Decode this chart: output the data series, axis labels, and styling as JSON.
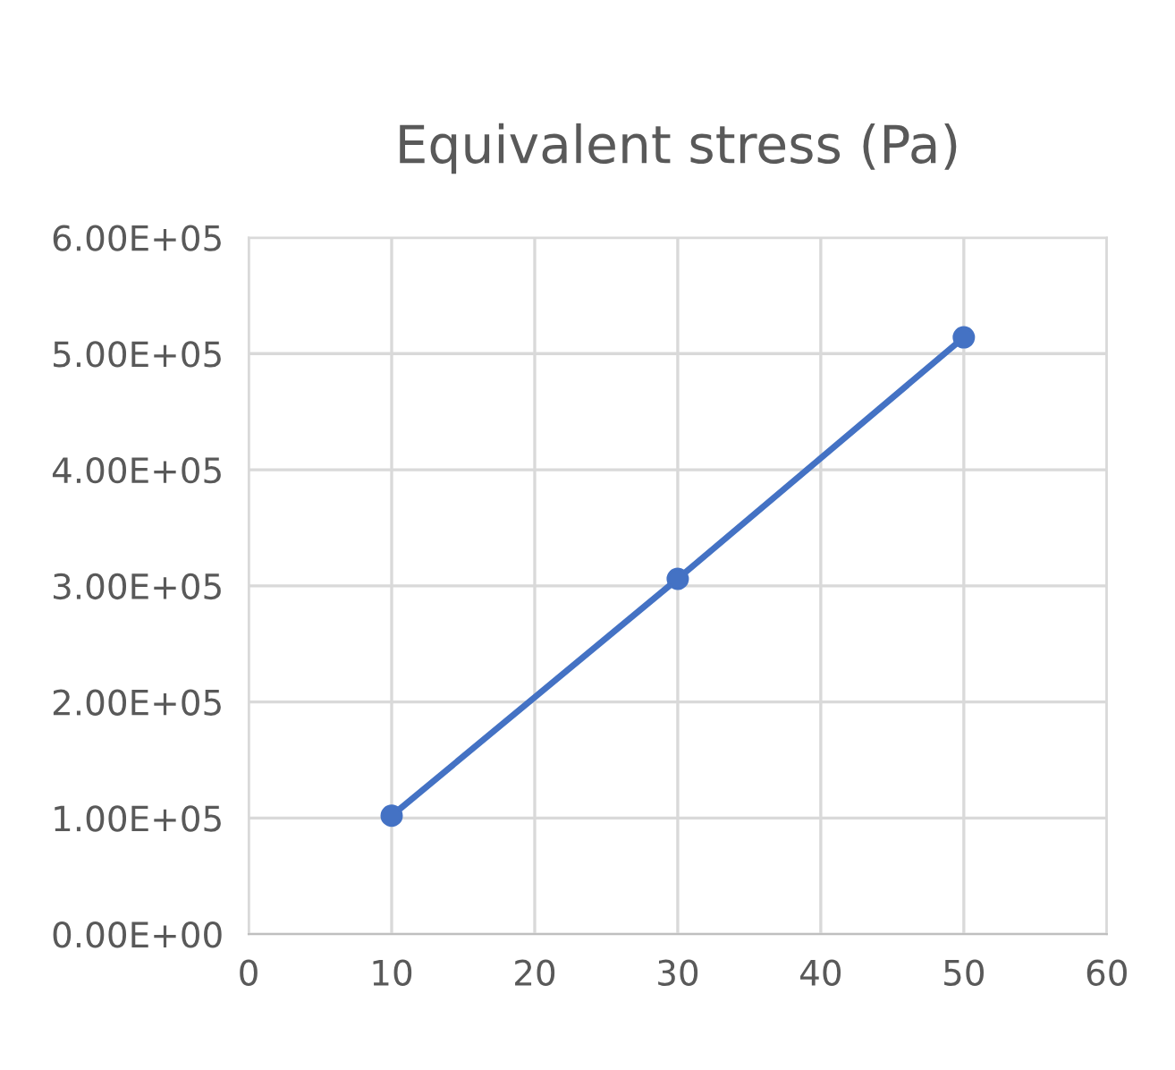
{
  "chart_data": {
    "type": "line",
    "title": "Equivalent stress (Pa)",
    "x": [
      10,
      30,
      50
    ],
    "series": [
      {
        "color": "#4472c4",
        "values": [
          102000,
          306000,
          514000
        ]
      }
    ],
    "xlim": [
      0,
      60
    ],
    "xticks": [
      0,
      10,
      20,
      30,
      40,
      50,
      60
    ],
    "ylim": [
      0,
      600000
    ],
    "yticks": [
      {
        "value": 0,
        "label": "0.00E+00"
      },
      {
        "value": 100000,
        "label": "1.00E+05"
      },
      {
        "value": 200000,
        "label": "2.00E+05"
      },
      {
        "value": 300000,
        "label": "3.00E+05"
      },
      {
        "value": 400000,
        "label": "4.00E+05"
      },
      {
        "value": 500000,
        "label": "5.00E+05"
      },
      {
        "value": 600000,
        "label": "6.00E+05"
      }
    ],
    "grid": true,
    "marker": "circle",
    "line_style": "solid"
  }
}
